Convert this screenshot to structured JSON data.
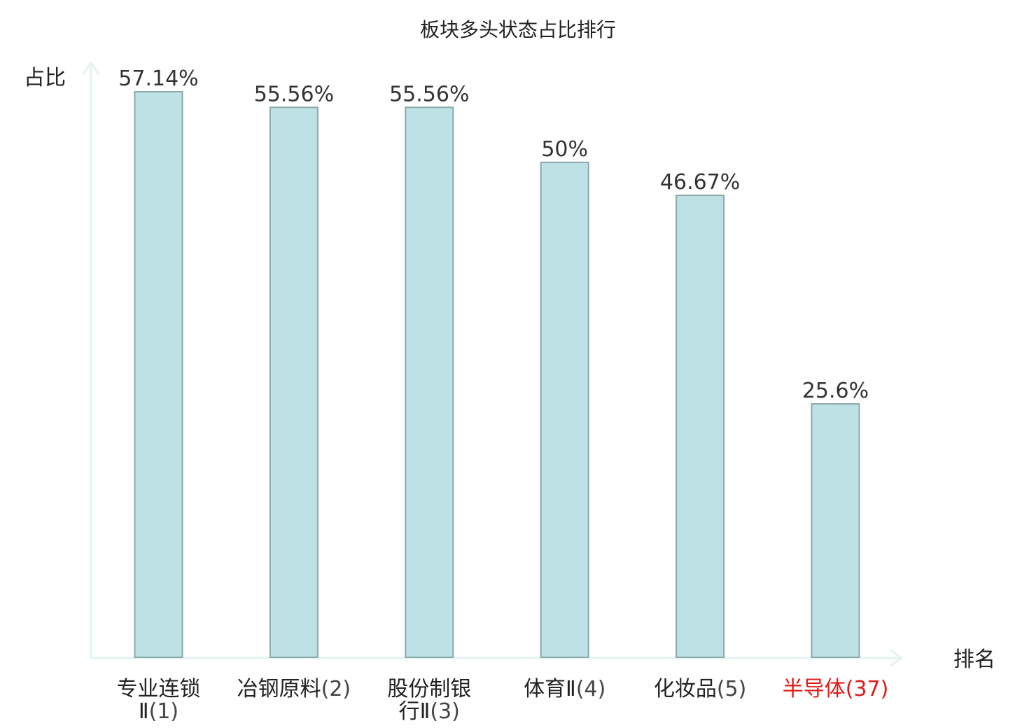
{
  "chart_data": {
    "type": "bar",
    "title": "板块多头状态占比排行",
    "ylabel": "占比",
    "xlabel": "排名",
    "ylim": [
      0,
      60
    ],
    "unit": "%",
    "grid": false,
    "categories": [
      {
        "name": [
          "专业连锁",
          "Ⅱ"
        ],
        "rank": "(1)",
        "value": 57.14,
        "label": "57.14%"
      },
      {
        "name": [
          "冶钢原料"
        ],
        "rank": "(2)",
        "value": 55.56,
        "label": "55.56%"
      },
      {
        "name": [
          "股份制银",
          "行Ⅱ"
        ],
        "rank": "(3)",
        "value": 55.56,
        "label": "55.56%"
      },
      {
        "name": [
          "体育Ⅱ"
        ],
        "rank": "(4)",
        "value": 50,
        "label": "50%"
      },
      {
        "name": [
          "化妆品"
        ],
        "rank": "(5)",
        "value": 46.67,
        "label": "46.67%"
      },
      {
        "name": [
          "半导体"
        ],
        "rank": "(37)",
        "value": 25.6,
        "label": "25.6%",
        "highlight": true
      }
    ],
    "colors": {
      "bar_fill": "#bde1e4",
      "bar_stroke": "#8aa9ab",
      "axis": "#e3f3f0",
      "highlight": "#e01b1b"
    }
  }
}
